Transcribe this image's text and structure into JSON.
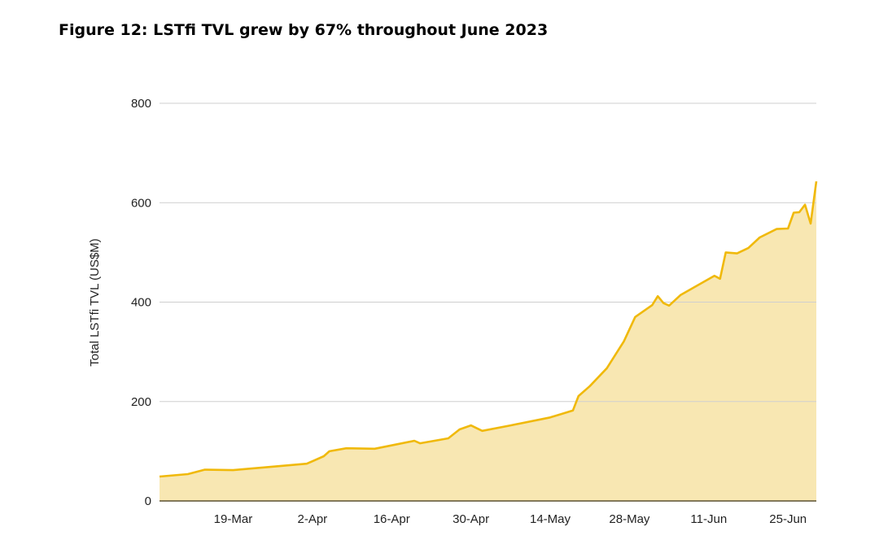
{
  "figure_title": "Figure 12: LSTfi TVL grew by 67% throughout June 2023",
  "chart_data": {
    "type": "area",
    "title": "Figure 12: LSTfi TVL grew by 67% throughout June 2023",
    "xlabel": "",
    "ylabel": "Total LSTfi TVL (US$M)",
    "xlim": [
      "2023-03-06",
      "2023-06-30"
    ],
    "ylim": [
      0,
      800
    ],
    "yticks": [
      0,
      200,
      400,
      600,
      800
    ],
    "xtick_labels": [
      {
        "date": "2023-03-19",
        "label": "19-Mar"
      },
      {
        "date": "2023-04-02",
        "label": "2-Apr"
      },
      {
        "date": "2023-04-16",
        "label": "16-Apr"
      },
      {
        "date": "2023-04-30",
        "label": "30-Apr"
      },
      {
        "date": "2023-05-14",
        "label": "14-May"
      },
      {
        "date": "2023-05-28",
        "label": "28-May"
      },
      {
        "date": "2023-06-11",
        "label": "11-Jun"
      },
      {
        "date": "2023-06-25",
        "label": "25-Jun"
      }
    ],
    "grid": "horizontal",
    "colors": {
      "line": "#F0B90B",
      "fill": "#F8E7B2"
    },
    "x": [
      "2023-03-06",
      "2023-03-11",
      "2023-03-14",
      "2023-03-19",
      "2023-03-25",
      "2023-04-01",
      "2023-04-04",
      "2023-04-05",
      "2023-04-08",
      "2023-04-13",
      "2023-04-20",
      "2023-04-21",
      "2023-04-26",
      "2023-04-28",
      "2023-04-30",
      "2023-05-02",
      "2023-05-07",
      "2023-05-14",
      "2023-05-18",
      "2023-05-19",
      "2023-05-21",
      "2023-05-24",
      "2023-05-27",
      "2023-05-29",
      "2023-06-01",
      "2023-06-02",
      "2023-06-03",
      "2023-06-04",
      "2023-06-06",
      "2023-06-10",
      "2023-06-12",
      "2023-06-13",
      "2023-06-14",
      "2023-06-16",
      "2023-06-18",
      "2023-06-20",
      "2023-06-23",
      "2023-06-25",
      "2023-06-26",
      "2023-06-27",
      "2023-06-28",
      "2023-06-29",
      "2023-06-30"
    ],
    "values": [
      49,
      54,
      63,
      62,
      68,
      75,
      90,
      100,
      106,
      105,
      121,
      116,
      126,
      144,
      152,
      141,
      152,
      168,
      182,
      211,
      231,
      267,
      321,
      370,
      394,
      412,
      398,
      393,
      414,
      440,
      453,
      447,
      500,
      498,
      509,
      530,
      547,
      548,
      580,
      581,
      596,
      558,
      643
    ]
  }
}
